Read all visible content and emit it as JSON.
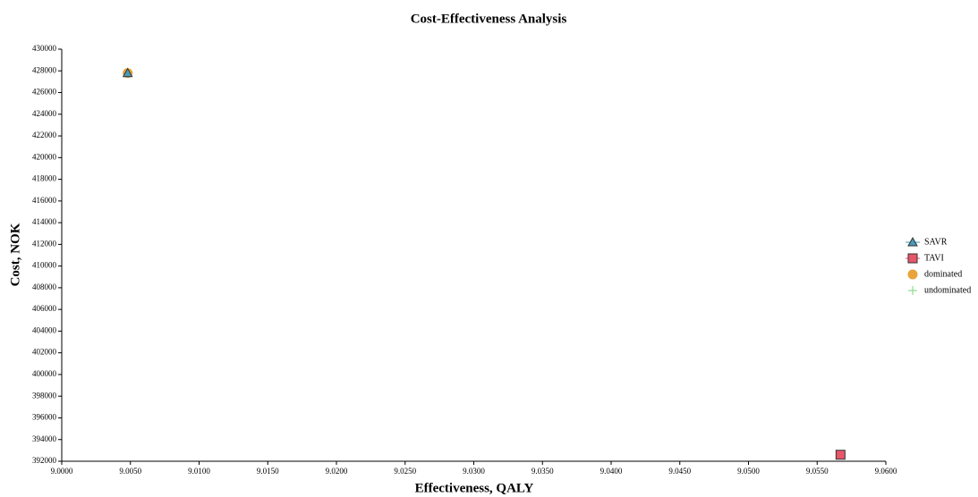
{
  "chart_data": {
    "type": "scatter",
    "title": "Cost-Effectiveness Analysis",
    "x_label": "Effectiveness, QALY",
    "y_label": "Cost, NOK",
    "xlim": [
      9.0,
      9.06
    ],
    "xticks": [
      {
        "value": 9.0,
        "label": "9.0000"
      },
      {
        "value": 9.005,
        "label": "9.0050"
      },
      {
        "value": 9.01,
        "label": "9.0100"
      },
      {
        "value": 9.015,
        "label": "9.0150"
      },
      {
        "value": 9.02,
        "label": "9.0200"
      },
      {
        "value": 9.025,
        "label": "9.0250"
      },
      {
        "value": 9.03,
        "label": "9.0300"
      },
      {
        "value": 9.035,
        "label": "9.0350"
      },
      {
        "value": 9.04,
        "label": "9.0400"
      },
      {
        "value": 9.045,
        "label": "9.0450"
      },
      {
        "value": 9.05,
        "label": "9.0500"
      },
      {
        "value": 9.055,
        "label": "9.0550"
      },
      {
        "value": 9.06,
        "label": "9.0600"
      }
    ],
    "ylim": [
      392000,
      430000
    ],
    "yticks": [
      392000,
      394000,
      396000,
      398000,
      400000,
      402000,
      404000,
      406000,
      408000,
      410000,
      412000,
      414000,
      416000,
      418000,
      420000,
      422000,
      424000,
      426000,
      428000,
      430000
    ],
    "legend": "right",
    "series": [
      {
        "name": "dominated",
        "color": "#e8a33a",
        "marker": "circle",
        "x": [
          9.0048
        ],
        "values": [
          427800
        ]
      },
      {
        "name": "undominated",
        "color": "#7ed37e",
        "marker": "plus",
        "x": [
          9.0567
        ],
        "values": [
          392600
        ]
      },
      {
        "name": "SAVR",
        "color": "#4a9bb8",
        "marker": "triangle",
        "x": [
          9.0048
        ],
        "values": [
          427800
        ]
      },
      {
        "name": "TAVI",
        "color": "#e8566a",
        "marker": "square",
        "x": [
          9.0567
        ],
        "values": [
          392600
        ]
      }
    ],
    "legend_order": [
      "SAVR",
      "TAVI",
      "dominated",
      "undominated"
    ]
  }
}
